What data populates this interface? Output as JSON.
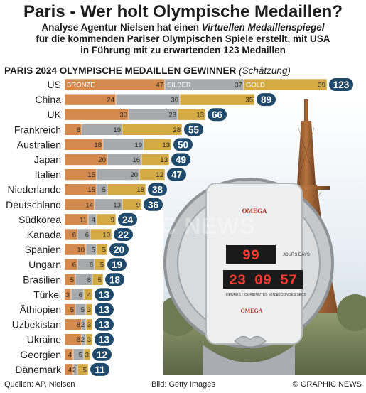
{
  "header": {
    "title": "Paris - Wer holt Olympische Medaillen?",
    "subtitle_line1_a": "Analyse Agentur  Nielsen hat einen ",
    "subtitle_line1_b": "Virtuellen Medaillenspiegel",
    "subtitle_line2": "für die kommenden Pariser Olympischen Spiele erstellt, mit USA",
    "subtitle_line3": "in Führung mit zu erwartenden 123 Medaillen"
  },
  "chart_heading": "PARIS 2024 OLYMPISCHE MEDAILLEN GEWINNER",
  "chart_heading_note": "(Schätzung)",
  "clock": {
    "brand": "OMEGA",
    "days_value": "99",
    "days_label": "JOURS DAYS",
    "time_value": "23 09 57",
    "unit_labels": [
      "HEURES HOURS",
      "MINUTES MINS",
      "SECONDES SECS"
    ],
    "brand_bottom": "OMEGA"
  },
  "watermark": "GRAPHIC NEWS",
  "footer": {
    "sources": "Quellen: AP, Nielsen",
    "image_credit": "Bild: Getty Images",
    "copyright": "© GRAPHIC NEWS"
  },
  "colors": {
    "bronze": "#d58a4d",
    "silver": "#a7a9ab",
    "gold": "#d4aa45",
    "total_pill": "#1f4a6b"
  },
  "chart_data": {
    "type": "bar",
    "orientation": "horizontal",
    "stacked": true,
    "title": "PARIS 2024 OLYMPISCHE MEDAILLEN GEWINNER",
    "legend": [
      "BRONZE",
      "SILBER",
      "GOLD"
    ],
    "legend_placement": "inside first bar",
    "categories": [
      "US",
      "China",
      "UK",
      "Frankreich",
      "Australien",
      "Japan",
      "Italien",
      "Niederlande",
      "Deutschland",
      "Südkorea",
      "Kanada",
      "Spanien",
      "Ungarn",
      "Brasilien",
      "Türkei",
      "Äthiopien",
      "Uzbekistan",
      "Ukraine",
      "Georgien",
      "Dänemark"
    ],
    "series": [
      {
        "name": "BRONZE",
        "values": [
          47,
          24,
          30,
          8,
          18,
          20,
          15,
          15,
          14,
          11,
          6,
          10,
          6,
          5,
          3,
          5,
          8,
          8,
          4,
          4
        ]
      },
      {
        "name": "SILBER",
        "values": [
          37,
          30,
          23,
          19,
          19,
          16,
          20,
          5,
          13,
          4,
          6,
          5,
          8,
          8,
          6,
          5,
          2,
          2,
          5,
          2
        ]
      },
      {
        "name": "GOLD",
        "values": [
          39,
          35,
          13,
          28,
          13,
          13,
          12,
          18,
          9,
          9,
          10,
          5,
          5,
          5,
          4,
          3,
          3,
          3,
          3,
          5
        ]
      }
    ],
    "totals": [
      123,
      89,
      66,
      55,
      50,
      49,
      47,
      38,
      36,
      24,
      22,
      20,
      19,
      18,
      13,
      13,
      13,
      13,
      12,
      11
    ]
  }
}
